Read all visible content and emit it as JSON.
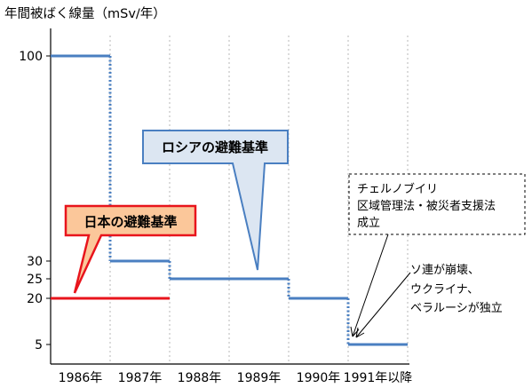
{
  "chart_data": {
    "type": "line",
    "title": "",
    "ylabel": "年間被ばく線量（mSv/年）",
    "xlabel": "",
    "categories": [
      "1986年",
      "1987年",
      "1988年",
      "1989年",
      "1990年",
      "1991年以降"
    ],
    "yticks": [
      {
        "label": "100",
        "value": 100
      },
      {
        "label": "30",
        "value": 30
      },
      {
        "label": "25",
        "value": 25
      },
      {
        "label": "20",
        "value": 20
      },
      {
        "label": "5",
        "value": 5
      }
    ],
    "grid": "vertical-dotted",
    "series": [
      {
        "name": "ロシアの避難基準",
        "color": "#4a7fc1",
        "style": "step",
        "steps": [
          {
            "from": 0,
            "to": 1,
            "value": 100
          },
          {
            "from": 1,
            "to": 2,
            "value": 30
          },
          {
            "from": 2,
            "to": 4,
            "value": 25
          },
          {
            "from": 4,
            "to": 5,
            "value": 20
          },
          {
            "from": 5,
            "to": 6,
            "value": 5
          }
        ]
      },
      {
        "name": "日本の避難基準",
        "color": "#e8141c",
        "style": "step",
        "steps": [
          {
            "from": 0,
            "to": 2,
            "value": 20
          }
        ]
      }
    ],
    "annotations": [
      {
        "id": "japan",
        "text": "日本の避難基準",
        "fill": "#fbc79a",
        "stroke": "#e8141c"
      },
      {
        "id": "russia",
        "text": "ロシアの避難基準",
        "fill": "#dce6f2",
        "stroke": "#4a7fc1"
      },
      {
        "id": "chernobyl",
        "lines": [
          "チェルノブイリ",
          "区域管理法・被災者支援法",
          "成立"
        ]
      },
      {
        "id": "ussr",
        "lines": [
          "ソ連が崩壊、",
          "ウクライナ、",
          "ベラルーシが独立"
        ]
      }
    ]
  }
}
